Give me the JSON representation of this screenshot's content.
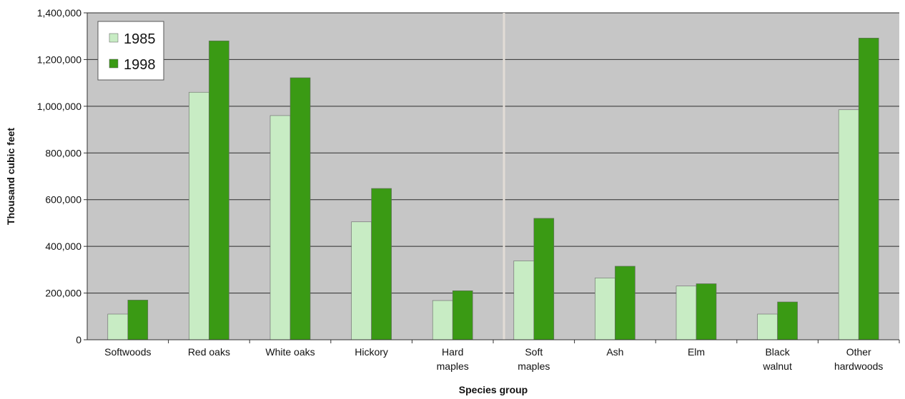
{
  "chart_data": {
    "type": "bar",
    "title": "",
    "xlabel": "Species group",
    "ylabel": "Thousand cubic feet",
    "ylim": [
      0,
      1400000
    ],
    "yticks": [
      0,
      200000,
      400000,
      600000,
      800000,
      1000000,
      1200000,
      1400000
    ],
    "ytick_labels": [
      "0",
      "200,000",
      "400,000",
      "600,000",
      "800,000",
      "1,000,000",
      "1,200,000",
      "1,400,000"
    ],
    "categories": [
      [
        "Softwoods"
      ],
      [
        "Red oaks"
      ],
      [
        "White oaks"
      ],
      [
        "Hickory"
      ],
      [
        "Hard",
        "maples"
      ],
      [
        "Soft",
        "maples"
      ],
      [
        "Ash"
      ],
      [
        "Elm"
      ],
      [
        "Black",
        "walnut"
      ],
      [
        "Other",
        "hardwoods"
      ]
    ],
    "series": [
      {
        "name": "1985",
        "color": "#c8ecc4",
        "values": [
          110000,
          1060000,
          960000,
          505000,
          168000,
          338000,
          265000,
          230000,
          110000,
          985000
        ]
      },
      {
        "name": "1998",
        "color": "#3a9a14",
        "values": [
          170000,
          1280000,
          1122000,
          648000,
          210000,
          520000,
          315000,
          240000,
          162000,
          1292000
        ]
      }
    ],
    "grid": true,
    "legend_position": "top-left",
    "plot_background": "#c6c6c6"
  }
}
